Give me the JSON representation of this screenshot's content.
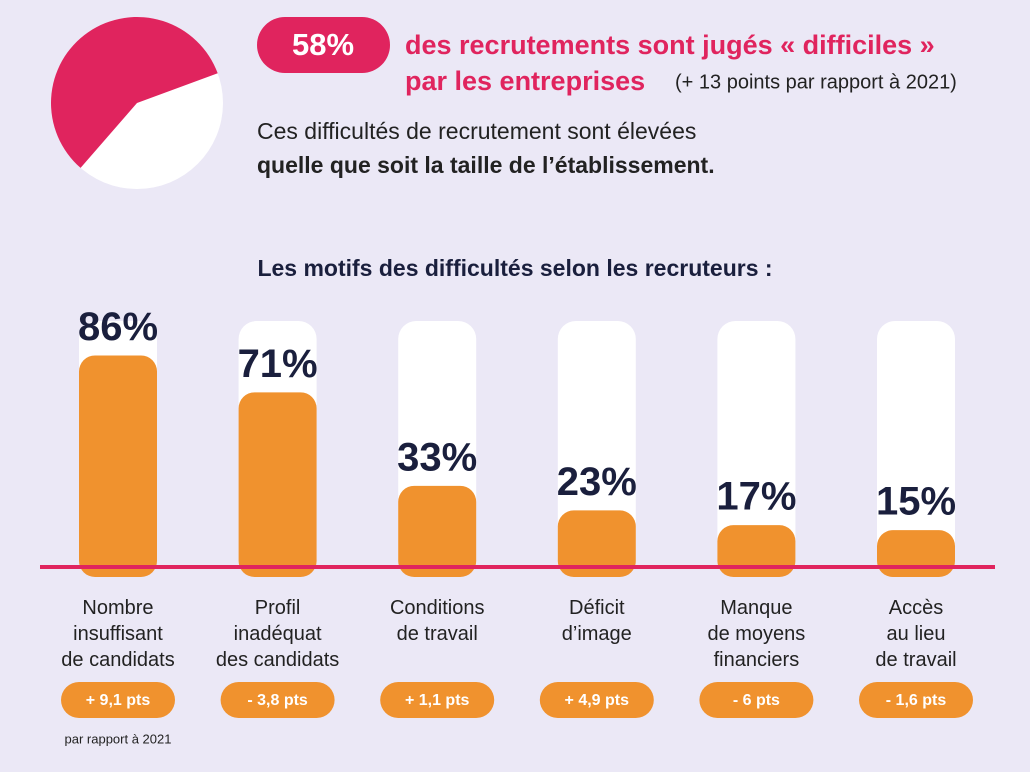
{
  "header": {
    "line1": "des recrutements sont jugés « difficiles »",
    "line2": "par les entreprises",
    "line2_note": "(+ 13 points par rapport à 2021)",
    "line3": "Ces difficultés de recrutement sont élevées",
    "line4": "quelle que soit la taille de l’établissement."
  },
  "chart_data": [
    {
      "type": "pie",
      "values": [
        58
      ],
      "value_labels": [
        "58%"
      ],
      "color": "#e0245e"
    },
    {
      "type": "bar",
      "title": "Les motifs des difficultés selon les recruteurs  :",
      "categories": [
        [
          "Nombre",
          "insuffisant",
          "de candidats"
        ],
        [
          "Profil",
          "inadéquat",
          "des candidats"
        ],
        [
          "Conditions",
          "de travail"
        ],
        [
          "Déficit",
          "d’image"
        ],
        [
          "Manque",
          "de moyens",
          "financiers"
        ],
        [
          "Accès",
          "au lieu",
          "de travail"
        ]
      ],
      "values": [
        86,
        71,
        33,
        23,
        17,
        15
      ],
      "value_labels": [
        "86%",
        "71%",
        "33%",
        "23%",
        "17%",
        "15%"
      ],
      "color": "#f0922e",
      "ylim": [
        0,
        100
      ],
      "change_labels": [
        "+ 9,1 pts",
        "- 3,8 pts",
        "+ 1,1 pts",
        "+ 4,9 pts",
        "- 6 pts",
        "- 1,6 pts"
      ],
      "change_note": "par rapport à 2021"
    }
  ]
}
